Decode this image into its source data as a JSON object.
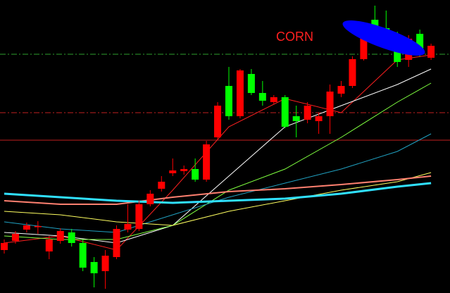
{
  "chart_data": {
    "type": "candlestick",
    "title": "CORN",
    "ylim": [
      0,
      416
    ],
    "up_color": "#ff0000",
    "down_color": "#00ff00",
    "open": [
      61,
      74,
      90,
      94,
      59,
      74,
      86,
      71,
      44,
      31,
      51,
      90,
      91,
      126,
      148,
      170,
      173,
      176,
      161,
      221,
      294,
      251,
      311,
      284,
      271,
      278,
      251,
      246,
      244,
      251,
      283,
      294,
      332,
      388,
      376,
      361,
      331,
      368,
      334
    ],
    "high": [
      76,
      88,
      100,
      102,
      81,
      92,
      91,
      76,
      51,
      61,
      96,
      126,
      131,
      146,
      166,
      191,
      181,
      191,
      216,
      271,
      321,
      318,
      318,
      301,
      281,
      281,
      266,
      271,
      256,
      296,
      301,
      336,
      378,
      408,
      401,
      371,
      366,
      374,
      354
    ],
    "low": [
      56,
      70,
      86,
      84,
      48,
      70,
      66,
      31,
      8,
      6,
      48,
      86,
      88,
      123,
      144,
      166,
      168,
      158,
      158,
      218,
      246,
      248,
      281,
      266,
      268,
      234,
      221,
      241,
      226,
      226,
      278,
      291,
      330,
      371,
      356,
      321,
      321,
      336,
      331
    ],
    "close": [
      71,
      84,
      96,
      95,
      76,
      88,
      71,
      36,
      28,
      53,
      91,
      98,
      126,
      141,
      158,
      174,
      176,
      161,
      211,
      266,
      251,
      316,
      284,
      273,
      278,
      236,
      244,
      266,
      251,
      286,
      294,
      332,
      374,
      374,
      361,
      328,
      361,
      341,
      351
    ],
    "lines": [
      {
        "color": "#ff2020",
        "width": 1,
        "x": [
          0,
          5,
          10,
          15,
          20,
          25,
          30,
          35,
          38
        ],
        "values": [
          71,
          81,
          61,
          146,
          236,
          276,
          256,
          331,
          338
        ]
      },
      {
        "color": "#ffffff",
        "width": 1,
        "x": [
          0,
          5,
          10,
          15,
          20,
          25,
          30,
          35,
          38
        ],
        "values": [
          86,
          81,
          71,
          96,
          166,
          236,
          266,
          296,
          318
        ]
      },
      {
        "color": "#7fff3f",
        "width": 1,
        "x": [
          0,
          5,
          10,
          15,
          20,
          25,
          30,
          35,
          38
        ],
        "values": [
          81,
          76,
          76,
          96,
          146,
          176,
          221,
          271,
          298
        ]
      },
      {
        "color": "#20a0c0",
        "width": 1,
        "x": [
          0,
          5,
          10,
          15,
          20,
          25,
          30,
          35,
          38
        ],
        "values": [
          101,
          91,
          86,
          111,
          136,
          156,
          176,
          201,
          226
        ]
      },
      {
        "color": "#ffff60",
        "width": 1,
        "x": [
          0,
          5,
          10,
          15,
          20,
          25,
          30,
          35,
          38
        ],
        "values": [
          116,
          111,
          101,
          96,
          116,
          131,
          146,
          158,
          171
        ]
      },
      {
        "color": "#ff8070",
        "width": 2,
        "x": [
          0,
          5,
          10,
          15,
          20,
          25,
          30,
          35,
          38
        ],
        "values": [
          131,
          126,
          126,
          136,
          144,
          148,
          154,
          161,
          166
        ]
      },
      {
        "color": "#30e0ff",
        "width": 3,
        "x": [
          0,
          5,
          10,
          15,
          20,
          25,
          30,
          35,
          38
        ],
        "values": [
          141,
          136,
          131,
          128,
          131,
          134,
          141,
          151,
          156
        ]
      }
    ],
    "hlines": [
      {
        "value": 339,
        "color": "#2ea02e",
        "dash": true
      },
      {
        "value": 256,
        "color": "#c02020",
        "dash": true
      },
      {
        "value": 217,
        "color": "#c02020",
        "dash": false
      }
    ]
  }
}
